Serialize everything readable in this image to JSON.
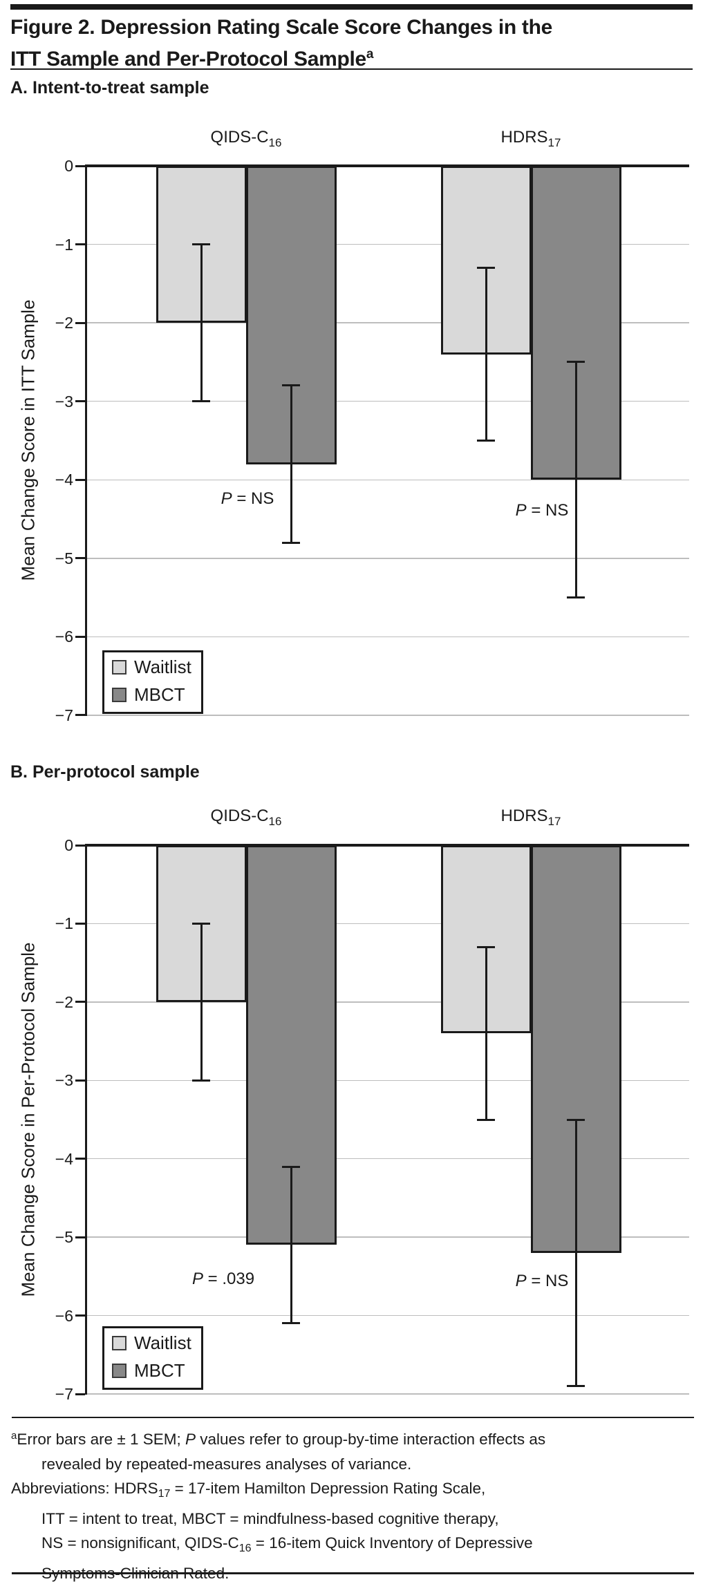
{
  "title": {
    "line1": "Figure 2. Depression Rating Scale Score Changes in the",
    "line2": "ITT Sample and Per-Protocol Sample",
    "superscript": "a"
  },
  "panel_a_heading": "A. Intent-to-treat sample",
  "panel_b_heading": "B. Per-protocol sample",
  "legend": {
    "items": [
      {
        "label": "Waitlist",
        "color": "#d9d9d9"
      },
      {
        "label": "MBCT",
        "color": "#888888"
      }
    ]
  },
  "colors": {
    "waitlist_fill": "#d9d9d9",
    "mbct_fill": "#888888",
    "bar_border": "#1a1a1a",
    "gridline": "#bdbdbd",
    "text": "#1a1a1a"
  },
  "chart_data": [
    {
      "type": "bar",
      "panel": "A. Intent-to-treat sample",
      "categories": [
        {
          "label": "QIDS-C",
          "sub": "16"
        },
        {
          "label": "HDRS",
          "sub": "17"
        }
      ],
      "series": [
        {
          "name": "Waitlist",
          "color": "#d9d9d9",
          "values": [
            -2.0,
            -2.4
          ],
          "error_high": [
            -1.0,
            -1.3
          ],
          "error_low": [
            -3.0,
            -3.5
          ]
        },
        {
          "name": "MBCT",
          "color": "#888888",
          "values": [
            -3.8,
            -4.0
          ],
          "error_high": [
            -2.8,
            -2.5
          ],
          "error_low": [
            -4.8,
            -5.5
          ]
        }
      ],
      "p_labels": [
        "P = NS",
        "P = NS"
      ],
      "ylabel": "Mean Change Score in ITT Sample",
      "ylim": [
        -7,
        0
      ],
      "yticks": [
        "0",
        "−1",
        "−2",
        "−3",
        "−4",
        "−5",
        "−6",
        "−7"
      ],
      "grid": true,
      "legend_position": "lower-left"
    },
    {
      "type": "bar",
      "panel": "B. Per-protocol sample",
      "categories": [
        {
          "label": "QIDS-C",
          "sub": "16"
        },
        {
          "label": "HDRS",
          "sub": "17"
        }
      ],
      "series": [
        {
          "name": "Waitlist",
          "color": "#d9d9d9",
          "values": [
            -2.0,
            -2.4
          ],
          "error_high": [
            -1.0,
            -1.3
          ],
          "error_low": [
            -3.0,
            -3.5
          ]
        },
        {
          "name": "MBCT",
          "color": "#888888",
          "values": [
            -5.1,
            -5.2
          ],
          "error_high": [
            -4.1,
            -3.5
          ],
          "error_low": [
            -6.1,
            -6.9
          ]
        }
      ],
      "p_labels": [
        "P = .039",
        "P = NS"
      ],
      "ylabel": "Mean Change Score in Per-Protocol Sample",
      "ylim": [
        -7,
        0
      ],
      "yticks": [
        "0",
        "−1",
        "−2",
        "−3",
        "−4",
        "−5",
        "−6",
        "−7"
      ],
      "grid": true,
      "legend_position": "lower-left"
    }
  ],
  "footnote": {
    "lines": [
      {
        "indent": false,
        "segments": [
          {
            "sup": "a"
          },
          {
            "t": "Error bars are ± 1 SEM; "
          },
          {
            "i": "P"
          },
          {
            "t": " values refer to group-by-time interaction effects as"
          }
        ]
      },
      {
        "indent": true,
        "segments": [
          {
            "t": "revealed by repeated-measures analyses of variance."
          }
        ]
      },
      {
        "indent": false,
        "segments": [
          {
            "t": "Abbreviations: HDRS"
          },
          {
            "sub": "17"
          },
          {
            "t": " = 17-item Hamilton Depression Rating Scale,"
          }
        ]
      },
      {
        "indent": true,
        "segments": [
          {
            "t": "ITT = intent to treat, MBCT = mindfulness-based cognitive therapy,"
          }
        ]
      },
      {
        "indent": true,
        "segments": [
          {
            "t": "NS = nonsignificant, QIDS-C"
          },
          {
            "sub": "16"
          },
          {
            "t": " = 16-item Quick Inventory of Depressive"
          }
        ]
      },
      {
        "indent": true,
        "segments": [
          {
            "t": "Symptoms-Clinician Rated."
          }
        ]
      }
    ]
  }
}
